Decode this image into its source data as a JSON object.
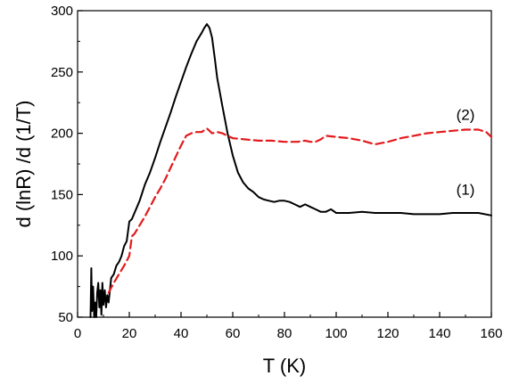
{
  "chart_data": {
    "type": "line",
    "title": "",
    "xlabel": "T (K)",
    "ylabel": "d (lnR) /d (1/T)",
    "xlim": [
      0,
      160
    ],
    "ylim": [
      50,
      300
    ],
    "xticks": [
      0,
      20,
      40,
      60,
      80,
      100,
      120,
      140,
      160
    ],
    "yticks": [
      50,
      100,
      150,
      200,
      250,
      300
    ],
    "grid": false,
    "legend": "none",
    "annotations": [
      {
        "text": "(1)",
        "x": 150,
        "y": 150
      },
      {
        "text": "(2)",
        "x": 150,
        "y": 211
      }
    ],
    "series": [
      {
        "color": "#000000",
        "dash": "solid",
        "x": [
          5,
          5.3,
          5.6,
          6,
          6.4,
          6.8,
          7.2,
          7.6,
          8,
          8.4,
          8.8,
          9.2,
          9.6,
          10,
          10.5,
          11,
          11.5,
          12,
          13,
          14,
          15,
          16,
          17,
          18,
          19,
          20,
          21,
          22,
          23,
          24,
          26,
          28,
          30,
          32,
          34,
          36,
          38,
          40,
          42,
          44,
          46,
          48,
          49,
          50,
          51,
          52,
          53,
          54,
          56,
          58,
          60,
          62,
          64,
          66,
          68,
          70,
          72,
          74,
          76,
          78,
          80,
          82,
          84,
          86,
          88,
          90,
          92,
          94,
          96,
          98,
          100,
          105,
          110,
          115,
          120,
          125,
          130,
          135,
          140,
          145,
          150,
          155,
          160
        ],
        "y": [
          50,
          90,
          55,
          75,
          50,
          62,
          50,
          70,
          78,
          58,
          72,
          52,
          78,
          60,
          72,
          58,
          68,
          62,
          82,
          85,
          92,
          95,
          100,
          108,
          112,
          128,
          130,
          135,
          140,
          145,
          158,
          168,
          180,
          193,
          205,
          217,
          230,
          242,
          254,
          265,
          275,
          282,
          286,
          289,
          286,
          278,
          262,
          245,
          222,
          200,
          182,
          168,
          160,
          155,
          152,
          148,
          146,
          145,
          144,
          145,
          145,
          144,
          142,
          140,
          142,
          140,
          138,
          136,
          136,
          138,
          135,
          135,
          136,
          135,
          135,
          135,
          134,
          134,
          134,
          135,
          135,
          135,
          133
        ]
      },
      {
        "color": "#e31a1c",
        "dash": "dashed",
        "x": [
          12,
          14,
          16,
          18,
          20,
          21,
          22,
          24,
          26,
          28,
          30,
          32,
          34,
          36,
          38,
          40,
          42,
          44,
          46,
          48,
          50,
          51,
          52,
          54,
          56,
          58,
          60,
          65,
          70,
          75,
          80,
          85,
          88,
          90,
          92,
          94,
          96,
          100,
          105,
          110,
          115,
          120,
          125,
          130,
          135,
          140,
          145,
          150,
          155,
          158,
          160
        ],
        "y": [
          70,
          78,
          85,
          92,
          100,
          116,
          118,
          125,
          132,
          140,
          148,
          155,
          163,
          172,
          181,
          190,
          198,
          200,
          201,
          201,
          204,
          202,
          200,
          201,
          200,
          198,
          196,
          195,
          194,
          194,
          193,
          193,
          194,
          193,
          193,
          195,
          198,
          197,
          196,
          194,
          191,
          193,
          196,
          198,
          200,
          201,
          202,
          203,
          203,
          201,
          197
        ]
      }
    ]
  }
}
